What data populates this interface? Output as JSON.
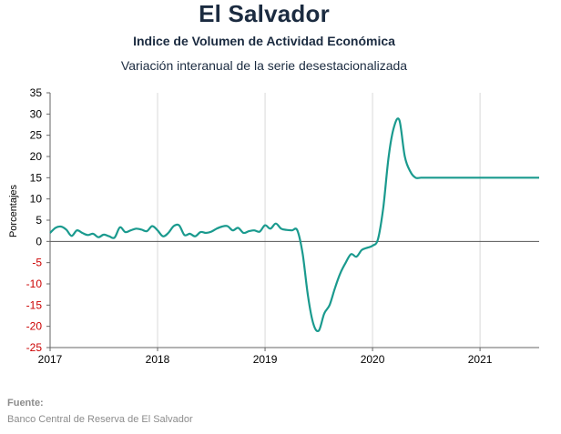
{
  "header": {
    "title": "El Salvador",
    "subtitle": "Indice de Volumen de  Actividad Económica",
    "subtitle2": "Variación interanual de la serie desestacionalizada"
  },
  "footer": {
    "source_label": "Fuente:",
    "source_text": "Banco Central de Reserva de El Salvador"
  },
  "chart_data": {
    "type": "line",
    "ylabel": "Porcentajes",
    "ylim": [
      -25,
      35
    ],
    "yticks": [
      35,
      30,
      25,
      20,
      15,
      10,
      5,
      0,
      -5,
      -10,
      -15,
      -20,
      -25
    ],
    "xlim": [
      2017.0,
      2021.55
    ],
    "xticks": [
      "2017",
      "2018",
      "2019",
      "2020",
      "2021"
    ],
    "grid": "vertical",
    "colors": {
      "line": "#1a9a8e",
      "negative_tick": "#cc0000",
      "axis": "#666666",
      "grid": "#d9d9d9"
    },
    "series": [
      {
        "x": [
          2017.0,
          2017.05,
          2017.1,
          2017.15,
          2017.2,
          2017.25,
          2017.3,
          2017.35,
          2017.4,
          2017.45,
          2017.5,
          2017.55,
          2017.6,
          2017.65,
          2017.7,
          2017.75,
          2017.8,
          2017.85,
          2017.9,
          2017.95,
          2018.0,
          2018.05,
          2018.1,
          2018.15,
          2018.2,
          2018.25,
          2018.3,
          2018.35,
          2018.4,
          2018.45,
          2018.5,
          2018.55,
          2018.6,
          2018.65,
          2018.7,
          2018.75,
          2018.8,
          2018.85,
          2018.9,
          2018.95,
          2019.0,
          2019.05,
          2019.1,
          2019.15,
          2019.2,
          2019.25,
          2019.3,
          2019.35,
          2019.4,
          2019.45,
          2019.5,
          2019.55,
          2019.6,
          2019.65,
          2019.7,
          2019.75,
          2019.8,
          2019.85,
          2019.9,
          2019.95,
          2020.0,
          2020.05,
          2020.1,
          2020.15,
          2020.2,
          2020.25,
          2020.3,
          2020.35,
          2020.4,
          2020.45,
          2020.5,
          2020.55,
          2020.6,
          2020.65,
          2020.7,
          2020.75,
          2020.8,
          2020.85,
          2020.9,
          2020.95,
          2021.0,
          2021.05,
          2021.1,
          2021.15,
          2021.2,
          2021.25,
          2021.3,
          2021.35,
          2021.4,
          2021.45,
          2021.5,
          2021.55
        ],
        "y": [
          2.0,
          3.2,
          3.5,
          2.8,
          1.3,
          2.6,
          2.0,
          1.5,
          1.8,
          1.0,
          1.6,
          1.2,
          0.9,
          3.3,
          2.2,
          2.6,
          3.0,
          2.8,
          2.4,
          3.6,
          2.6,
          1.2,
          2.0,
          3.6,
          3.8,
          1.5,
          1.8,
          1.2,
          2.2,
          2.0,
          2.3,
          3.0,
          3.5,
          3.6,
          2.6,
          3.2,
          2.0,
          2.4,
          2.6,
          2.3,
          3.8,
          3.0,
          4.2,
          3.0,
          2.7,
          2.6,
          2.6,
          -3.0,
          -13.0,
          -19.5,
          -21.0,
          -17.0,
          -15.0,
          -11.0,
          -7.5,
          -5.0,
          -3.0,
          -3.6,
          -2.0,
          -1.5,
          -1.0,
          0.5,
          8.0,
          20.0,
          27.0,
          28.5,
          20.0,
          16.5,
          15.0,
          15.0,
          15.0,
          15.0,
          15.0,
          15.0,
          15.0,
          15.0,
          15.0,
          15.0,
          15.0,
          15.0,
          15.0,
          15.0,
          15.0,
          15.0,
          15.0,
          15.0,
          15.0,
          15.0,
          15.0,
          15.0,
          15.0,
          15.0
        ]
      }
    ]
  }
}
